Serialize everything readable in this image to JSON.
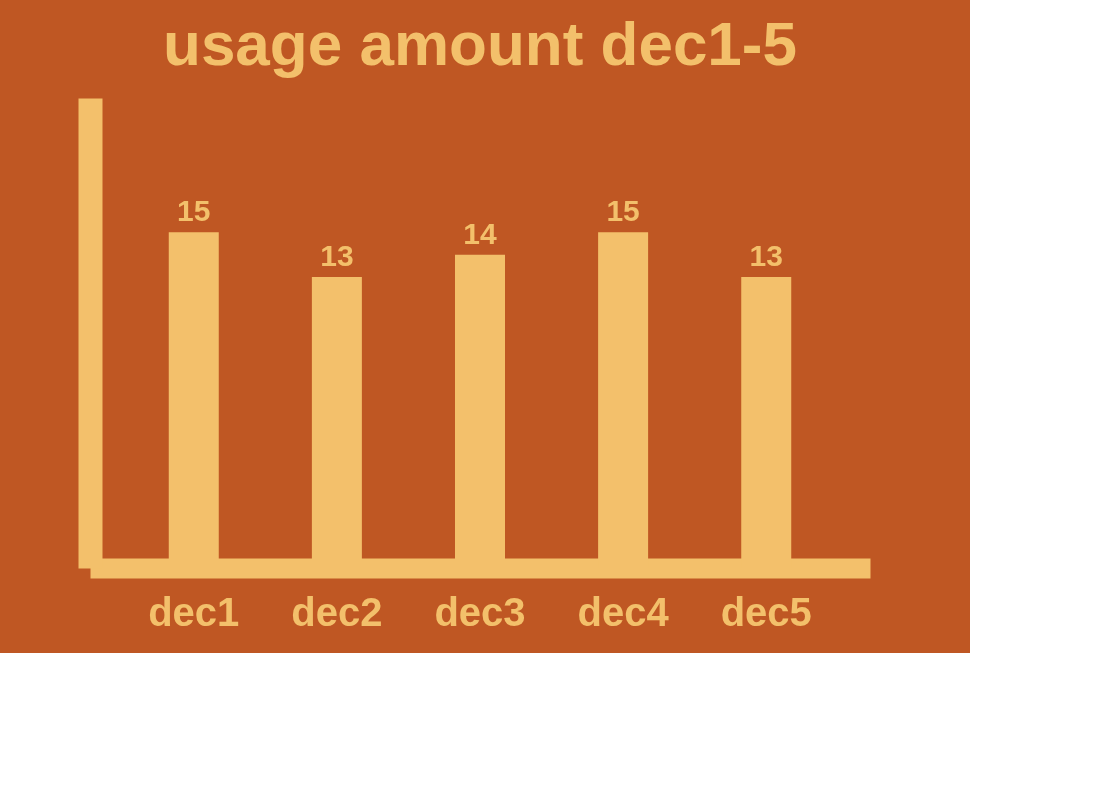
{
  "chart_data": {
    "type": "bar",
    "title": "usage amount dec1-5",
    "categories": [
      "dec1",
      "dec2",
      "dec3",
      "dec4",
      "dec5"
    ],
    "values": [
      15,
      13,
      14,
      15,
      13
    ],
    "color": "#f3c06b",
    "data_labels": true,
    "grid": false
  }
}
